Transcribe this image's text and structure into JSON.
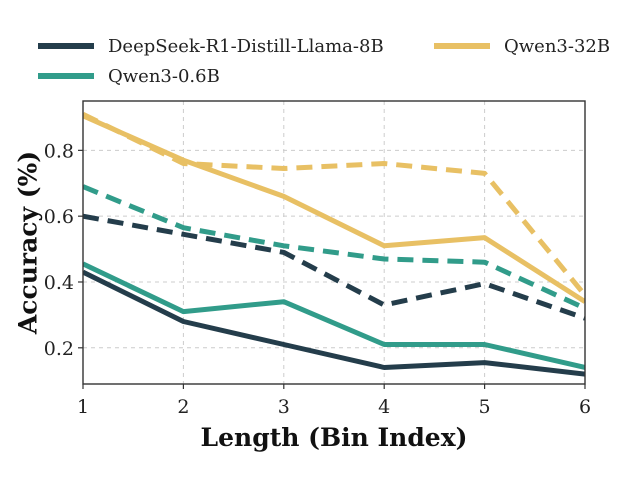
{
  "chart_data": {
    "type": "line",
    "title": "",
    "xlabel": "Length (Bin Index)",
    "ylabel": "Accuracy (%)",
    "x": [
      1,
      2,
      3,
      4,
      5,
      6
    ],
    "xlim": [
      1,
      6
    ],
    "ylim": [
      0.09,
      0.95
    ],
    "xticks": [
      "1",
      "2",
      "3",
      "4",
      "5",
      "6"
    ],
    "yticks": [
      {
        "value": 0.2,
        "label": "0.2"
      },
      {
        "value": 0.4,
        "label": "0.4"
      },
      {
        "value": 0.6,
        "label": "0.6"
      },
      {
        "value": 0.8,
        "label": "0.8"
      }
    ],
    "grid": true,
    "legend_position": "top",
    "legend": [
      {
        "name": "DeepSeek-R1-Distill-Llama-8B",
        "color": "#243d4b"
      },
      {
        "name": "Qwen3-32B",
        "color": "#e8c064"
      },
      {
        "name": "Qwen3-0.6B",
        "color": "#319c8a"
      }
    ],
    "series": [
      {
        "model": "Qwen3-32B",
        "style": "dashed",
        "color": "#e8c064",
        "values": [
          0.91,
          0.76,
          0.745,
          0.76,
          0.73,
          0.36
        ]
      },
      {
        "model": "Qwen3-32B",
        "style": "solid",
        "color": "#e8c064",
        "values": [
          0.905,
          0.77,
          0.66,
          0.51,
          0.535,
          0.34
        ]
      },
      {
        "model": "Qwen3-0.6B",
        "style": "dashed",
        "color": "#319c8a",
        "values": [
          0.69,
          0.565,
          0.51,
          0.47,
          0.46,
          0.32
        ]
      },
      {
        "model": "Qwen3-0.6B",
        "style": "solid",
        "color": "#319c8a",
        "values": [
          0.455,
          0.31,
          0.34,
          0.21,
          0.21,
          0.14
        ]
      },
      {
        "model": "DeepSeek-R1-Distill-Llama-8B",
        "style": "dashed",
        "color": "#243d4b",
        "values": [
          0.6,
          0.545,
          0.49,
          0.33,
          0.395,
          0.29
        ]
      },
      {
        "model": "DeepSeek-R1-Distill-Llama-8B",
        "style": "solid",
        "color": "#243d4b",
        "values": [
          0.43,
          0.28,
          0.21,
          0.14,
          0.155,
          0.12
        ]
      }
    ]
  }
}
